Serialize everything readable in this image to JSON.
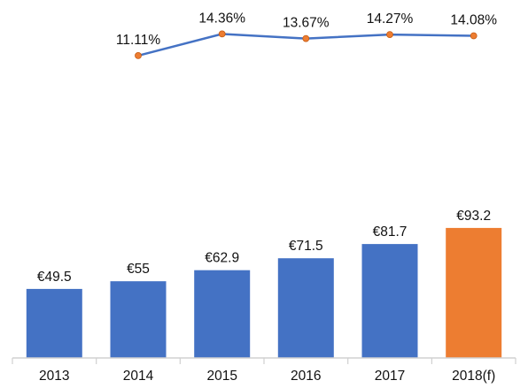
{
  "chart_data": {
    "type": "bar",
    "categories": [
      "2013",
      "2014",
      "2015",
      "2016",
      "2017",
      "2018(f)"
    ],
    "series": [
      {
        "values": [
          49.5,
          55,
          62.9,
          71.5,
          81.7,
          93.2
        ],
        "labels": [
          "€49.5",
          "€55",
          "€62.9",
          "€71.5",
          "€81.7",
          "€93.2"
        ],
        "colors": [
          "#4472c4",
          "#4472c4",
          "#4472c4",
          "#4472c4",
          "#4472c4",
          "#ed7d31"
        ]
      }
    ],
    "growth_line": {
      "type": "line",
      "categories": [
        "2014",
        "2015",
        "2016",
        "2017",
        "2018(f)"
      ],
      "values": [
        11.11,
        14.36,
        13.67,
        14.27,
        14.08
      ],
      "labels": [
        "11.11%",
        "14.36%",
        "13.67%",
        "14.27%",
        "14.08%"
      ],
      "line_color": "#4472c4",
      "marker_color": "#ed7d31"
    },
    "title": "",
    "xlabel": "",
    "ylabel": "",
    "ylim": [
      0,
      100
    ],
    "grid": false,
    "legend": "none"
  }
}
